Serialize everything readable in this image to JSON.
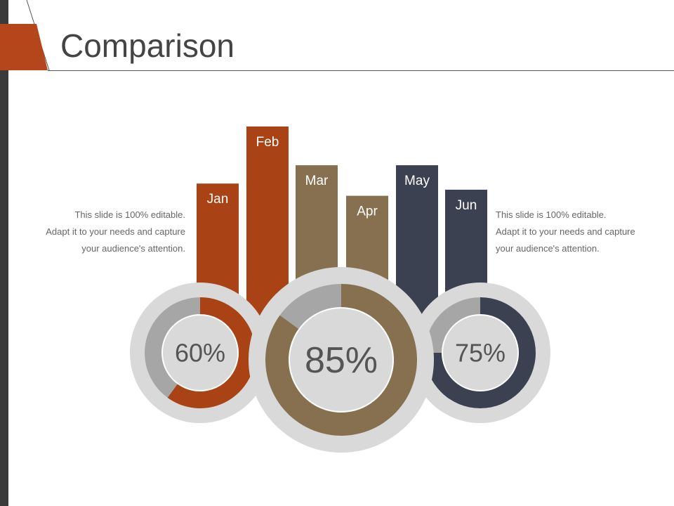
{
  "slide": {
    "title": "Comparison"
  },
  "text_left": {
    "lines": [
      "This slide is 100% editable.",
      "Adapt it to your needs and capture",
      "your audience's attention."
    ]
  },
  "text_right": {
    "lines": [
      "This slide is 100% editable.",
      "Adapt it to your needs and capture",
      "your audience's attention."
    ]
  },
  "colors": {
    "rust": "#a94214",
    "brown": "#87704f",
    "slate": "#3b4150",
    "ring_gray": "#d9d9d9",
    "remainder_gray": "#a6a6a6",
    "dark_bar": "#3a3a3a"
  },
  "chart_data": [
    {
      "type": "bar",
      "categories": [
        "Jan",
        "Feb",
        "Mar",
        "Apr",
        "May",
        "Jun"
      ],
      "values": [
        0.72,
        1.0,
        0.81,
        0.66,
        0.81,
        0.69
      ],
      "colors": [
        "#a94214",
        "#a94214",
        "#87704f",
        "#87704f",
        "#3b4150",
        "#3b4150"
      ]
    },
    {
      "type": "pie",
      "donuts": [
        {
          "label": "60%",
          "value": 60,
          "color": "#a94214"
        },
        {
          "label": "85%",
          "value": 85,
          "color": "#87704f"
        },
        {
          "label": "75%",
          "value": 75,
          "color": "#3b4150"
        }
      ]
    }
  ]
}
